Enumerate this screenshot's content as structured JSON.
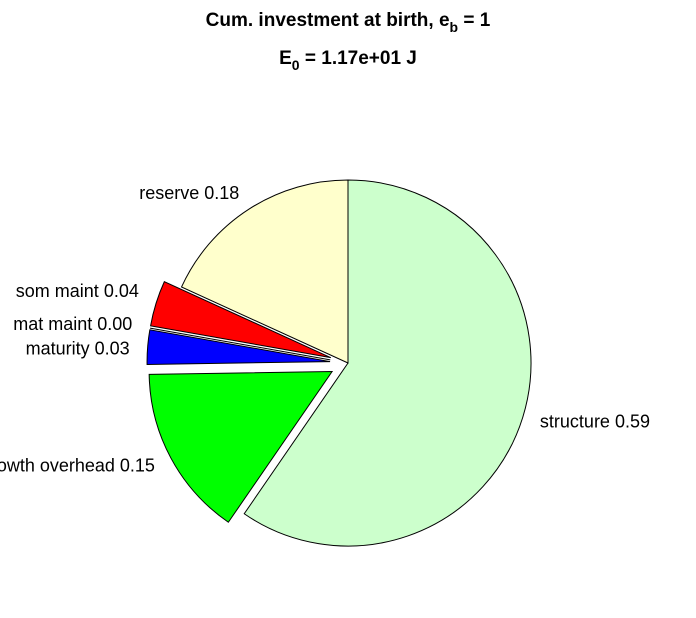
{
  "chart_data": {
    "type": "pie",
    "title": [
      "Cum. investment at birth, e",
      "b",
      " = 1"
    ],
    "subtitle": [
      "E",
      "0",
      " = 1.17e+01 J"
    ],
    "categories": [
      "structure",
      "growth overhead",
      "maturity",
      "mat maint",
      "som maint",
      "reserve"
    ],
    "values": [
      0.59,
      0.15,
      0.03,
      0.0,
      0.04,
      0.18
    ],
    "value_labels": [
      "0.59",
      "0.15",
      "0.03",
      "0.00",
      "0.04",
      "0.18"
    ],
    "colors": [
      "#ccffcc",
      "#00ff00",
      "#0000ff",
      "#ccccff",
      "#ff0000",
      "#ffffcc"
    ],
    "explode": [
      false,
      true,
      true,
      true,
      true,
      false
    ]
  }
}
